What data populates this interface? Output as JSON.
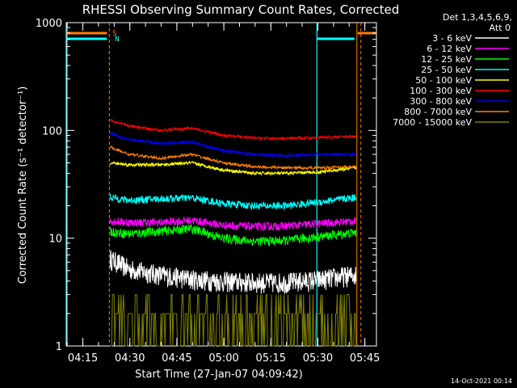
{
  "chart_data": {
    "type": "line",
    "title": "RHESSI Observing Summary Count Rates, Corrected",
    "xlabel": "Start Time (27-Jan-07 04:09:42)",
    "ylabel": "Corrected Count Rate (s⁻¹ detector⁻¹)",
    "x_range_minutes": [
      0,
      99
    ],
    "xtick_labels": [
      "04:15",
      "04:30",
      "04:45",
      "05:00",
      "05:15",
      "05:30",
      "05:45"
    ],
    "xtick_minutes": [
      5.3,
      20.3,
      35.3,
      50.3,
      65.3,
      80.3,
      95.3
    ],
    "y_scale": "log",
    "ylim": [
      1,
      1000
    ],
    "ytick_labels": [
      "1",
      "10",
      "100",
      "1000"
    ],
    "ytick_values": [
      1,
      10,
      100,
      1000
    ],
    "legend_placement": "top-right",
    "legend_header": [
      "Det 1,3,4,5,6,9,",
      "Att 0"
    ],
    "series": [
      {
        "name": "3 - 6 keV",
        "color": "#ffffff",
        "times": [
          14,
          20,
          30,
          40,
          50,
          60,
          70,
          80,
          92.5
        ],
        "values": [
          6.5,
          5.2,
          4.6,
          4.2,
          4.0,
          3.9,
          3.9,
          4.1,
          4.6
        ]
      },
      {
        "name": "6 - 12 keV",
        "color": "#ff00ff",
        "times": [
          14,
          20,
          30,
          40,
          50,
          60,
          70,
          80,
          92.5
        ],
        "values": [
          14.5,
          14.0,
          14.0,
          14.7,
          13.2,
          12.8,
          13.0,
          13.6,
          14.5
        ]
      },
      {
        "name": "12 - 25 keV",
        "color": "#00ff00",
        "times": [
          14,
          20,
          30,
          40,
          50,
          60,
          70,
          80,
          92.5
        ],
        "values": [
          11.5,
          11.0,
          11.6,
          12.3,
          10.0,
          9.4,
          9.5,
          10.3,
          11.3
        ]
      },
      {
        "name": "25 - 50 keV",
        "color": "#00ffff",
        "times": [
          14,
          20,
          30,
          40,
          50,
          60,
          70,
          80,
          92.5
        ],
        "values": [
          24.0,
          22.5,
          23.2,
          23.7,
          21.0,
          20.0,
          20.0,
          21.5,
          24.0
        ]
      },
      {
        "name": "50 - 100 keV",
        "color": "#ffff00",
        "times": [
          14,
          20,
          30,
          40,
          50,
          60,
          70,
          80,
          92.5
        ],
        "values": [
          50,
          48,
          48,
          50,
          43,
          40,
          40,
          41,
          45
        ]
      },
      {
        "name": "100 - 300 keV",
        "color": "#ff0000",
        "times": [
          14,
          20,
          30,
          40,
          50,
          60,
          70,
          80,
          92.5
        ],
        "values": [
          125,
          110,
          100,
          105,
          90,
          85,
          84,
          86,
          88
        ]
      },
      {
        "name": "300 - 800 keV",
        "color": "#0000ff",
        "times": [
          14,
          20,
          30,
          40,
          50,
          60,
          70,
          80,
          92.5
        ],
        "values": [
          95,
          82,
          76,
          78,
          65,
          60,
          58,
          60,
          60
        ]
      },
      {
        "name": "800 - 7000 keV",
        "color": "#ff8000",
        "times": [
          14,
          20,
          30,
          40,
          50,
          60,
          70,
          80,
          92.5
        ],
        "values": [
          70,
          60,
          55,
          60,
          50,
          46,
          45,
          45,
          46
        ]
      },
      {
        "name": "7000 - 15000 keV",
        "color": "#808000",
        "times": [
          14,
          92.5
        ],
        "values": [
          1.8,
          1.8
        ]
      }
    ],
    "flags": [
      {
        "label": "S",
        "color": "#ff8000"
      },
      {
        "label": "N",
        "color": "#00ffff"
      }
    ],
    "timestamp": "14-Oct-2021 00:14"
  }
}
